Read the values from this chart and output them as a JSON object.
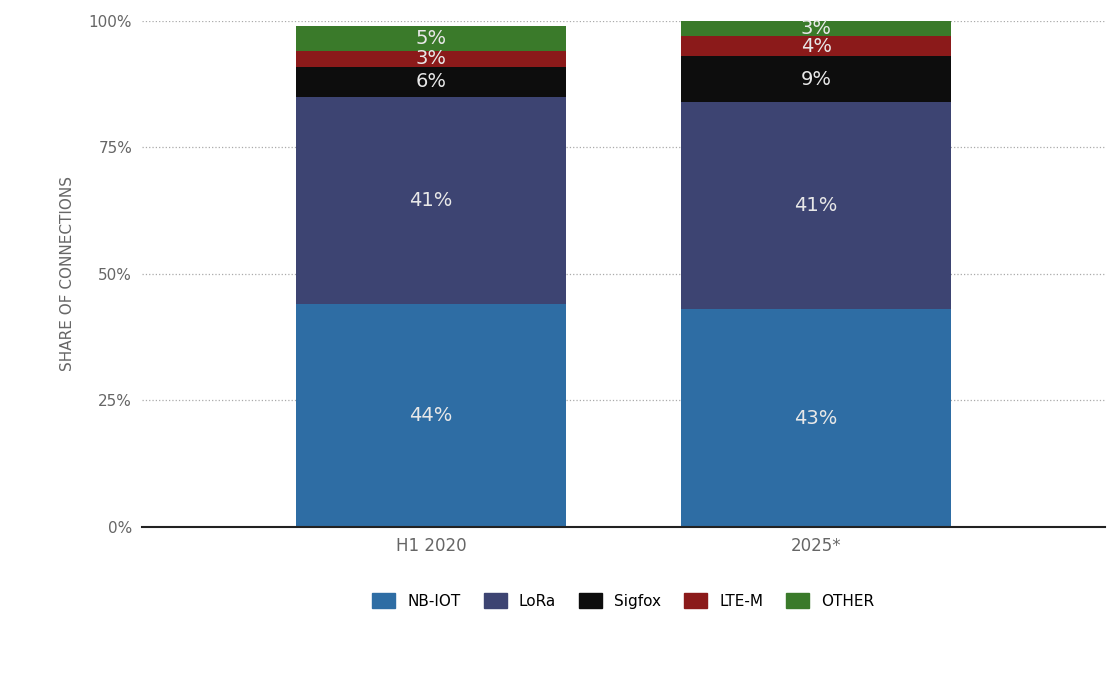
{
  "categories": [
    "H1 2020",
    "2025*"
  ],
  "series": [
    {
      "name": "NB-IOT",
      "values": [
        44,
        43
      ],
      "color": "#2e6da4"
    },
    {
      "name": "LoRa",
      "values": [
        41,
        41
      ],
      "color": "#3d4472"
    },
    {
      "name": "Sigfox",
      "values": [
        6,
        9
      ],
      "color": "#0d0d0d"
    },
    {
      "name": "LTE-M",
      "values": [
        3,
        4
      ],
      "color": "#8b1a1a"
    },
    {
      "name": "OTHER",
      "values": [
        5,
        3
      ],
      "color": "#3a7a2a"
    }
  ],
  "ylabel": "SHARE OF CONNECTIONS",
  "ylim": [
    0,
    100
  ],
  "yticks": [
    0,
    25,
    50,
    75,
    100
  ],
  "yticklabels": [
    "0%",
    "25%",
    "50%",
    "75%",
    "100%"
  ],
  "bg_color": "#ffffff",
  "label_color": "#e8e8e8",
  "label_fontsize": 14,
  "axis_fontsize": 11,
  "legend_fontsize": 11,
  "bar_width": 0.28,
  "bar_positions": [
    0.3,
    0.7
  ]
}
